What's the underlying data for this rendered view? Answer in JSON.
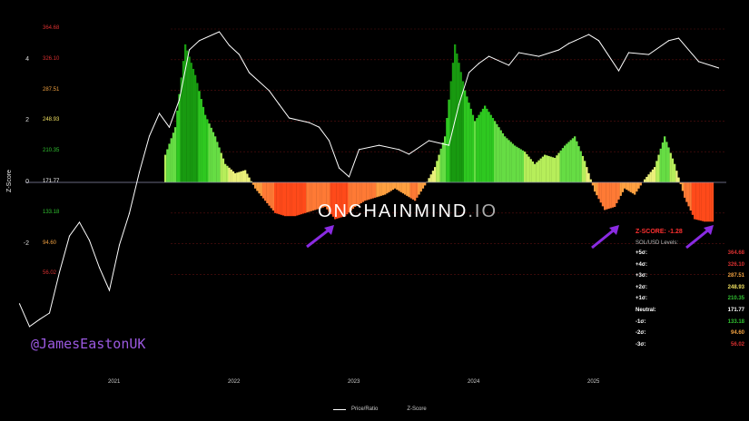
{
  "chart_data": {
    "type": "bar+line",
    "ylabel": "Z-Score",
    "ylim": [
      -5,
      5.5
    ],
    "y_ticks": [
      "4",
      "2",
      "0",
      "-2"
    ],
    "x_ticks": [
      "2021",
      "2022",
      "2023",
      "2024",
      "2025"
    ],
    "grid": true,
    "legend_position": "bottom",
    "legend": [
      "Price/Ratio",
      "Z-Score"
    ],
    "level_labels": [
      {
        "z": 5,
        "price": "364.68",
        "color": "#d93030"
      },
      {
        "z": 4,
        "price": "326.10",
        "color": "#d93030"
      },
      {
        "z": 3,
        "price": "287.51",
        "color": "#f0a040"
      },
      {
        "z": 2,
        "price": "248.93",
        "color": "#f0e060"
      },
      {
        "z": 1,
        "price": "210.35",
        "color": "#30c030"
      },
      {
        "z": 0,
        "price": "171.77",
        "color": "#ffffff"
      },
      {
        "z": -1,
        "price": "133.18",
        "color": "#30c030"
      },
      {
        "z": -2,
        "price": "94.60",
        "color": "#f0a040"
      },
      {
        "z": -3,
        "price": "56.02",
        "color": "#d93030"
      }
    ],
    "price_ratio_series": [
      [
        "2020-03",
        -3.96
      ],
      [
        "2020-04",
        -4.7
      ],
      [
        "2020-05",
        -4.47
      ],
      [
        "2020-06",
        -4.26
      ],
      [
        "2020-07",
        -2.93
      ],
      [
        "2020-08",
        -1.75
      ],
      [
        "2020-09",
        -1.3
      ],
      [
        "2020-10",
        -1.89
      ],
      [
        "2020-11",
        -2.78
      ],
      [
        "2020-12",
        -3.52
      ],
      [
        "2021-01",
        -2.04
      ],
      [
        "2021-02",
        -1.01
      ],
      [
        "2021-03",
        0.33
      ],
      [
        "2021-04",
        1.51
      ],
      [
        "2021-05",
        2.25
      ],
      [
        "2021-06",
        1.8
      ],
      [
        "2021-07",
        2.69
      ],
      [
        "2021-08",
        4.32
      ],
      [
        "2021-09",
        4.62
      ],
      [
        "2021-11",
        4.91
      ],
      [
        "2021-12",
        4.47
      ],
      [
        "2022-01",
        4.17
      ],
      [
        "2022-02",
        3.58
      ],
      [
        "2022-04",
        2.99
      ],
      [
        "2022-05",
        2.54
      ],
      [
        "2022-06",
        2.1
      ],
      [
        "2022-08",
        1.95
      ],
      [
        "2022-09",
        1.8
      ],
      [
        "2022-10",
        1.36
      ],
      [
        "2022-11",
        0.47
      ],
      [
        "2022-12",
        0.18
      ],
      [
        "2023-01",
        1.07
      ],
      [
        "2023-03",
        1.21
      ],
      [
        "2023-05",
        1.07
      ],
      [
        "2023-06",
        0.92
      ],
      [
        "2023-08",
        1.36
      ],
      [
        "2023-10",
        1.21
      ],
      [
        "2023-11",
        2.54
      ],
      [
        "2023-12",
        3.58
      ],
      [
        "2024-01",
        3.88
      ],
      [
        "2024-02",
        4.11
      ],
      [
        "2024-04",
        3.82
      ],
      [
        "2024-05",
        4.23
      ],
      [
        "2024-07",
        4.11
      ],
      [
        "2024-09",
        4.32
      ],
      [
        "2024-10",
        4.53
      ],
      [
        "2024-12",
        4.82
      ],
      [
        "2025-01",
        4.62
      ],
      [
        "2025-03",
        3.64
      ],
      [
        "2025-04",
        4.23
      ],
      [
        "2025-06",
        4.17
      ],
      [
        "2025-08",
        4.62
      ],
      [
        "2025-09",
        4.7
      ],
      [
        "2025-11",
        3.94
      ],
      [
        "2026-01",
        3.73
      ]
    ],
    "zscore_series": [
      [
        "2021-06",
        0.9
      ],
      [
        "2021-07",
        1.8
      ],
      [
        "2021-08",
        4.5
      ],
      [
        "2021-09",
        3.5
      ],
      [
        "2021-10",
        2.2
      ],
      [
        "2021-11",
        1.5
      ],
      [
        "2021-12",
        0.6
      ],
      [
        "2022-01",
        0.3
      ],
      [
        "2022-02",
        0.4
      ],
      [
        "2022-03",
        -0.2
      ],
      [
        "2022-04",
        -0.6
      ],
      [
        "2022-05",
        -1.0
      ],
      [
        "2022-06",
        -1.1
      ],
      [
        "2022-07",
        -1.1
      ],
      [
        "2022-08",
        -1.0
      ],
      [
        "2022-09",
        -0.9
      ],
      [
        "2022-10",
        -0.8
      ],
      [
        "2022-11",
        -1.2
      ],
      [
        "2022-12",
        -1.1
      ],
      [
        "2023-01",
        -0.8
      ],
      [
        "2023-02",
        -0.6
      ],
      [
        "2023-03",
        -0.5
      ],
      [
        "2023-04",
        -0.4
      ],
      [
        "2023-05",
        -0.2
      ],
      [
        "2023-06",
        -0.4
      ],
      [
        "2023-07",
        -0.6
      ],
      [
        "2023-08",
        -0.1
      ],
      [
        "2023-09",
        0.5
      ],
      [
        "2023-10",
        1.5
      ],
      [
        "2023-11",
        4.5
      ],
      [
        "2023-12",
        3.0
      ],
      [
        "2024-01",
        2.0
      ],
      [
        "2024-02",
        2.5
      ],
      [
        "2024-03",
        2.0
      ],
      [
        "2024-04",
        1.5
      ],
      [
        "2024-05",
        1.2
      ],
      [
        "2024-06",
        1.0
      ],
      [
        "2024-07",
        0.6
      ],
      [
        "2024-08",
        0.9
      ],
      [
        "2024-09",
        0.8
      ],
      [
        "2024-10",
        1.2
      ],
      [
        "2024-11",
        1.5
      ],
      [
        "2024-12",
        0.7
      ],
      [
        "2025-01",
        -0.3
      ],
      [
        "2025-02",
        -0.9
      ],
      [
        "2025-03",
        -0.8
      ],
      [
        "2025-04",
        -0.2
      ],
      [
        "2025-05",
        -0.4
      ],
      [
        "2025-06",
        0.1
      ],
      [
        "2025-07",
        0.5
      ],
      [
        "2025-08",
        1.5
      ],
      [
        "2025-09",
        0.6
      ],
      [
        "2025-10",
        -0.5
      ],
      [
        "2025-11",
        -1.2
      ],
      [
        "2025-12",
        -1.28
      ]
    ]
  },
  "watermark": {
    "main": "ONCHAINMIND",
    "suffix": ".IO"
  },
  "handle": "@JamesEastonUK",
  "panel": {
    "zscore": "Z-SCORE: -1.28",
    "heading": "SOL/USD Levels:",
    "rows": [
      {
        "label": "+5σ:",
        "value": "364.68",
        "color": "#d93030"
      },
      {
        "label": "+4σ:",
        "value": "326.10",
        "color": "#d93030"
      },
      {
        "label": "+3σ:",
        "value": "287.51",
        "color": "#f0a040"
      },
      {
        "label": "+2σ:",
        "value": "248.93",
        "color": "#f0e060"
      },
      {
        "label": "+1σ:",
        "value": "210.35",
        "color": "#30c030"
      },
      {
        "label": "Neutral:",
        "value": "171.77",
        "color": "#ffffff"
      },
      {
        "label": "-1σ:",
        "value": "133.18",
        "color": "#30c030"
      },
      {
        "label": "-2σ:",
        "value": "94.60",
        "color": "#f0a040"
      },
      {
        "label": "-3σ:",
        "value": "56.02",
        "color": "#d93030"
      }
    ]
  },
  "colors": {
    "arrow": "#8a2be2",
    "handle": "#9b59e0"
  }
}
